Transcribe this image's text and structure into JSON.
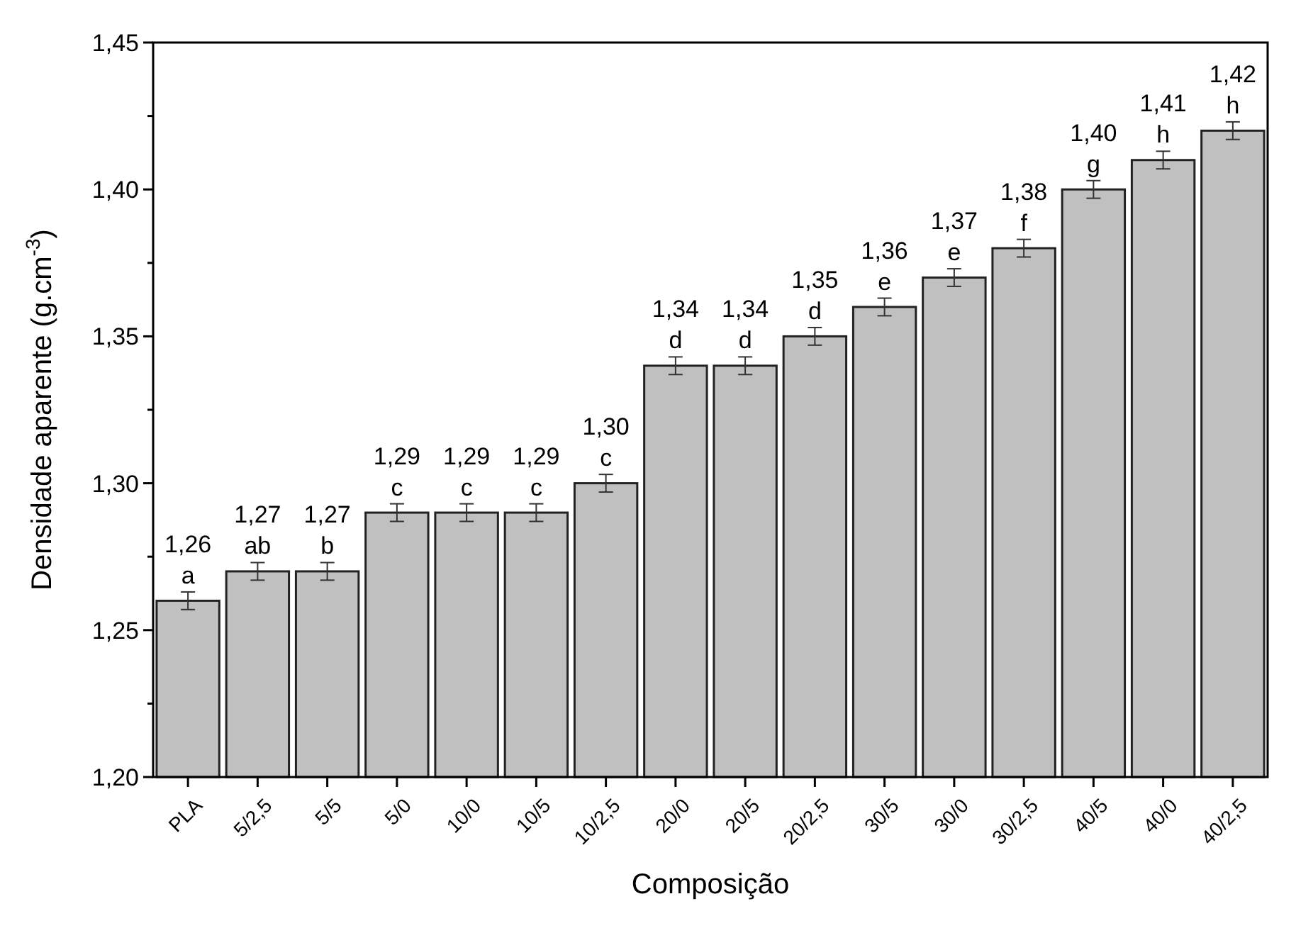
{
  "chart_data": {
    "type": "bar",
    "xlabel": "Composição",
    "ylabel": "Densidade aparente (g.cm$^{-3}$)",
    "categories": [
      "PLA",
      "5/2,5",
      "5/5",
      "5/0",
      "10/0",
      "10/5",
      "10/2,5",
      "20/0",
      "20/5",
      "20/2,5",
      "30/5",
      "30/0",
      "30/2,5",
      "40/5",
      "40/0",
      "40/2,5"
    ],
    "values": [
      1.26,
      1.27,
      1.27,
      1.29,
      1.29,
      1.29,
      1.3,
      1.34,
      1.34,
      1.35,
      1.36,
      1.37,
      1.38,
      1.4,
      1.41,
      1.42
    ],
    "value_labels": [
      "1,26",
      "1,27",
      "1,27",
      "1,29",
      "1,29",
      "1,29",
      "1,30",
      "1,34",
      "1,34",
      "1,35",
      "1,36",
      "1,37",
      "1,38",
      "1,40",
      "1,41",
      "1,42"
    ],
    "errors": [
      0.003,
      0.003,
      0.003,
      0.003,
      0.003,
      0.003,
      0.003,
      0.003,
      0.003,
      0.003,
      0.003,
      0.003,
      0.003,
      0.003,
      0.003,
      0.003
    ],
    "color": "#c0c0c0",
    "annotations": [
      {
        "text": "a",
        "x": "PLA",
        "y": 1.26
      },
      {
        "text": "ab",
        "x": "5/2,5",
        "y": 1.27
      },
      {
        "text": "b",
        "x": "5/5",
        "y": 1.27
      },
      {
        "text": "c",
        "x": "5/0",
        "y": 1.29
      },
      {
        "text": "c",
        "x": "10/0",
        "y": 1.29
      },
      {
        "text": "c",
        "x": "10/5",
        "y": 1.29
      },
      {
        "text": "c",
        "x": "10/2,5",
        "y": 1.3
      },
      {
        "text": "d",
        "x": "20/0",
        "y": 1.34
      },
      {
        "text": "d",
        "x": "20/5",
        "y": 1.34
      },
      {
        "text": "d",
        "x": "20/2,5",
        "y": 1.35
      },
      {
        "text": "e",
        "x": "30/5",
        "y": 1.36
      },
      {
        "text": "e",
        "x": "30/0",
        "y": 1.37
      },
      {
        "text": "f",
        "x": "30/2,5",
        "y": 1.38
      },
      {
        "text": "g",
        "x": "40/5",
        "y": 1.4
      },
      {
        "text": "h",
        "x": "40/0",
        "y": 1.41
      },
      {
        "text": "h",
        "x": "40/2,5",
        "y": 1.42
      }
    ],
    "ylim": [
      1.2,
      1.45
    ],
    "yticks": [
      {
        "value": 1.2,
        "label": "1,20"
      },
      {
        "value": 1.225,
        "label": null
      },
      {
        "value": 1.25,
        "label": "1,25"
      },
      {
        "value": 1.275,
        "label": null
      },
      {
        "value": 1.3,
        "label": "1,30"
      },
      {
        "value": 1.325,
        "label": null
      },
      {
        "value": 1.35,
        "label": "1,35"
      },
      {
        "value": 1.375,
        "label": null
      },
      {
        "value": 1.4,
        "label": "1,40"
      },
      {
        "value": 1.425,
        "label": null
      },
      {
        "value": 1.45,
        "label": "1,45"
      }
    ],
    "grid": false
  }
}
